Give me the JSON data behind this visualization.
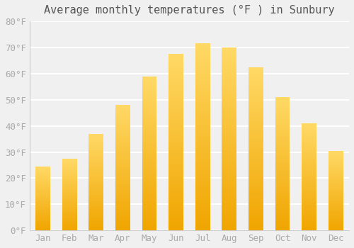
{
  "title": "Average monthly temperatures (°F ) in Sunbury",
  "months": [
    "Jan",
    "Feb",
    "Mar",
    "Apr",
    "May",
    "Jun",
    "Jul",
    "Aug",
    "Sep",
    "Oct",
    "Nov",
    "Dec"
  ],
  "values": [
    24.5,
    27.5,
    37.0,
    48.0,
    59.0,
    67.5,
    71.5,
    70.0,
    62.5,
    51.0,
    41.0,
    30.5
  ],
  "bar_color_bottom": "#F0A500",
  "bar_color_top": "#FFD966",
  "ylim": [
    0,
    80
  ],
  "yticks": [
    0,
    10,
    20,
    30,
    40,
    50,
    60,
    70,
    80
  ],
  "ytick_labels": [
    "0°F",
    "10°F",
    "20°F",
    "30°F",
    "40°F",
    "50°F",
    "60°F",
    "70°F",
    "80°F"
  ],
  "background_color": "#f0f0f0",
  "grid_color": "#ffffff",
  "title_fontsize": 11,
  "tick_fontsize": 9,
  "bar_width": 0.55,
  "gradient_steps": 100
}
